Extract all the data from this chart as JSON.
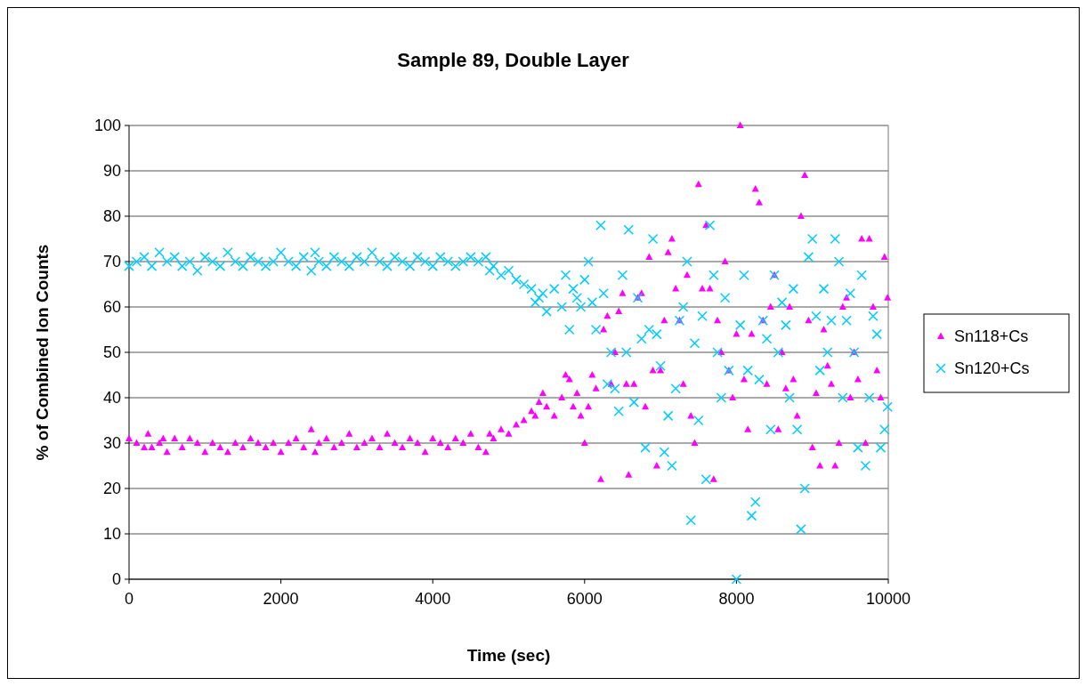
{
  "chart_data": {
    "type": "scatter",
    "title": "Sample 89, Double Layer",
    "xlabel": "Time (sec)",
    "ylabel": "% of Combined Ion Counts",
    "xlim": [
      0,
      10000
    ],
    "xticks": [
      0,
      2000,
      4000,
      6000,
      8000,
      10000
    ],
    "ylim": [
      0,
      100
    ],
    "yticks": [
      0,
      10,
      20,
      30,
      40,
      50,
      60,
      70,
      80,
      90,
      100
    ],
    "grid": "y",
    "legend": "right",
    "series": [
      {
        "name": "Sn118+Cs",
        "color": "#ff00ff",
        "marker": "triangle",
        "x": [
          0,
          100,
          200,
          250,
          300,
          400,
          450,
          500,
          600,
          700,
          800,
          900,
          1000,
          1100,
          1200,
          1300,
          1400,
          1500,
          1600,
          1700,
          1800,
          1900,
          2000,
          2100,
          2200,
          2300,
          2400,
          2450,
          2500,
          2600,
          2700,
          2800,
          2900,
          3000,
          3100,
          3200,
          3300,
          3400,
          3500,
          3600,
          3700,
          3800,
          3900,
          4000,
          4100,
          4200,
          4300,
          4400,
          4500,
          4600,
          4700,
          4750,
          4800,
          4900,
          5000,
          5100,
          5200,
          5300,
          5350,
          5400,
          5450,
          5500,
          5600,
          5700,
          5750,
          5800,
          5850,
          5900,
          5950,
          6000,
          6050,
          6100,
          6150,
          6213,
          6250,
          6300,
          6350,
          6400,
          6450,
          6500,
          6550,
          6580,
          6650,
          6700,
          6750,
          6800,
          6850,
          6900,
          6950,
          7000,
          7050,
          7100,
          7150,
          7200,
          7250,
          7300,
          7350,
          7400,
          7450,
          7500,
          7550,
          7600,
          7650,
          7700,
          7750,
          7800,
          7850,
          7900,
          7950,
          8000,
          8050,
          8100,
          8150,
          8200,
          8250,
          8300,
          8350,
          8400,
          8450,
          8500,
          8550,
          8600,
          8650,
          8700,
          8750,
          8800,
          8850,
          8900,
          8950,
          9000,
          9050,
          9100,
          9150,
          9200,
          9250,
          9300,
          9350,
          9400,
          9450,
          9500,
          9550,
          9600,
          9650,
          9700,
          9750,
          9800,
          9850,
          9900,
          9950,
          9990
        ],
        "values": [
          31,
          30,
          29,
          32,
          29,
          30,
          31,
          28,
          31,
          29,
          31,
          30,
          28,
          30,
          29,
          28,
          30,
          29,
          31,
          30,
          29,
          30,
          28,
          30,
          31,
          29,
          33,
          28,
          30,
          31,
          29,
          30,
          32,
          29,
          30,
          31,
          29,
          32,
          30,
          29,
          31,
          30,
          28,
          31,
          30,
          29,
          31,
          30,
          32,
          29,
          28,
          32,
          31,
          33,
          32,
          34,
          35,
          37,
          36,
          39,
          41,
          38,
          36,
          40,
          45,
          44,
          38,
          41,
          36,
          30,
          38,
          45,
          42,
          22,
          55,
          58,
          43,
          50,
          59,
          63,
          43,
          23,
          43,
          62,
          63,
          38,
          71,
          46,
          25,
          46,
          57,
          72,
          75,
          64,
          57,
          43,
          67,
          36,
          30,
          87,
          64,
          78,
          64,
          22,
          57,
          50,
          70,
          46,
          40,
          54,
          100,
          44,
          33,
          54,
          86,
          83,
          57,
          43,
          60,
          67,
          33,
          50,
          42,
          60,
          44,
          36,
          80,
          89,
          57,
          29,
          41,
          25,
          55,
          47,
          43,
          25,
          30,
          60,
          62,
          40,
          50,
          44,
          75,
          30,
          75,
          60,
          46,
          40,
          71,
          62
        ]
      },
      {
        "name": "Sn120+Cs",
        "color": "#00ccff",
        "marker": "cross",
        "x": [
          0,
          100,
          200,
          300,
          400,
          500,
          600,
          700,
          800,
          900,
          1000,
          1100,
          1200,
          1300,
          1400,
          1500,
          1600,
          1700,
          1800,
          1900,
          2000,
          2100,
          2200,
          2300,
          2400,
          2450,
          2500,
          2600,
          2700,
          2800,
          2900,
          3000,
          3100,
          3200,
          3300,
          3400,
          3500,
          3600,
          3700,
          3800,
          3900,
          4000,
          4100,
          4200,
          4300,
          4400,
          4500,
          4600,
          4700,
          4750,
          4800,
          4900,
          5000,
          5100,
          5200,
          5300,
          5350,
          5400,
          5450,
          5500,
          5600,
          5700,
          5750,
          5800,
          5850,
          5900,
          5950,
          6000,
          6050,
          6100,
          6150,
          6213,
          6250,
          6300,
          6350,
          6400,
          6450,
          6500,
          6550,
          6580,
          6650,
          6700,
          6750,
          6800,
          6850,
          6900,
          6950,
          7000,
          7050,
          7100,
          7150,
          7200,
          7250,
          7300,
          7350,
          7400,
          7450,
          7500,
          7550,
          7600,
          7650,
          7700,
          7750,
          7800,
          7850,
          7900,
          8000,
          8050,
          8100,
          8150,
          8200,
          8250,
          8300,
          8350,
          8400,
          8450,
          8500,
          8550,
          8600,
          8650,
          8700,
          8750,
          8800,
          8850,
          8900,
          8950,
          9000,
          9050,
          9100,
          9150,
          9200,
          9250,
          9300,
          9350,
          9400,
          9450,
          9500,
          9550,
          9600,
          9650,
          9700,
          9750,
          9800,
          9850,
          9900,
          9950,
          9990
        ],
        "values": [
          69,
          70,
          71,
          69,
          72,
          70,
          71,
          69,
          70,
          68,
          71,
          70,
          69,
          72,
          70,
          69,
          71,
          70,
          69,
          70,
          72,
          70,
          69,
          71,
          68,
          72,
          70,
          69,
          71,
          70,
          69,
          71,
          70,
          72,
          70,
          69,
          71,
          70,
          69,
          71,
          70,
          69,
          71,
          70,
          69,
          70,
          71,
          70,
          71,
          68,
          69,
          67,
          68,
          66,
          65,
          64,
          61,
          62,
          63,
          59,
          64,
          60,
          67,
          55,
          64,
          62,
          60,
          66,
          70,
          61,
          55,
          78,
          63,
          43,
          50,
          42,
          37,
          67,
          50,
          77,
          39,
          62,
          53,
          29,
          55,
          75,
          54,
          47,
          28,
          36,
          25,
          42,
          57,
          60,
          70,
          13,
          52,
          35,
          58,
          22,
          78,
          67,
          50,
          40,
          62,
          46,
          0,
          56,
          67,
          46,
          14,
          17,
          44,
          57,
          53,
          33,
          67,
          50,
          61,
          56,
          40,
          64,
          33,
          11,
          20,
          71,
          75,
          58,
          46,
          64,
          50,
          57,
          75,
          70,
          40,
          57,
          63,
          50,
          29,
          67,
          25,
          40,
          58,
          54,
          29,
          33,
          38
        ]
      }
    ]
  }
}
